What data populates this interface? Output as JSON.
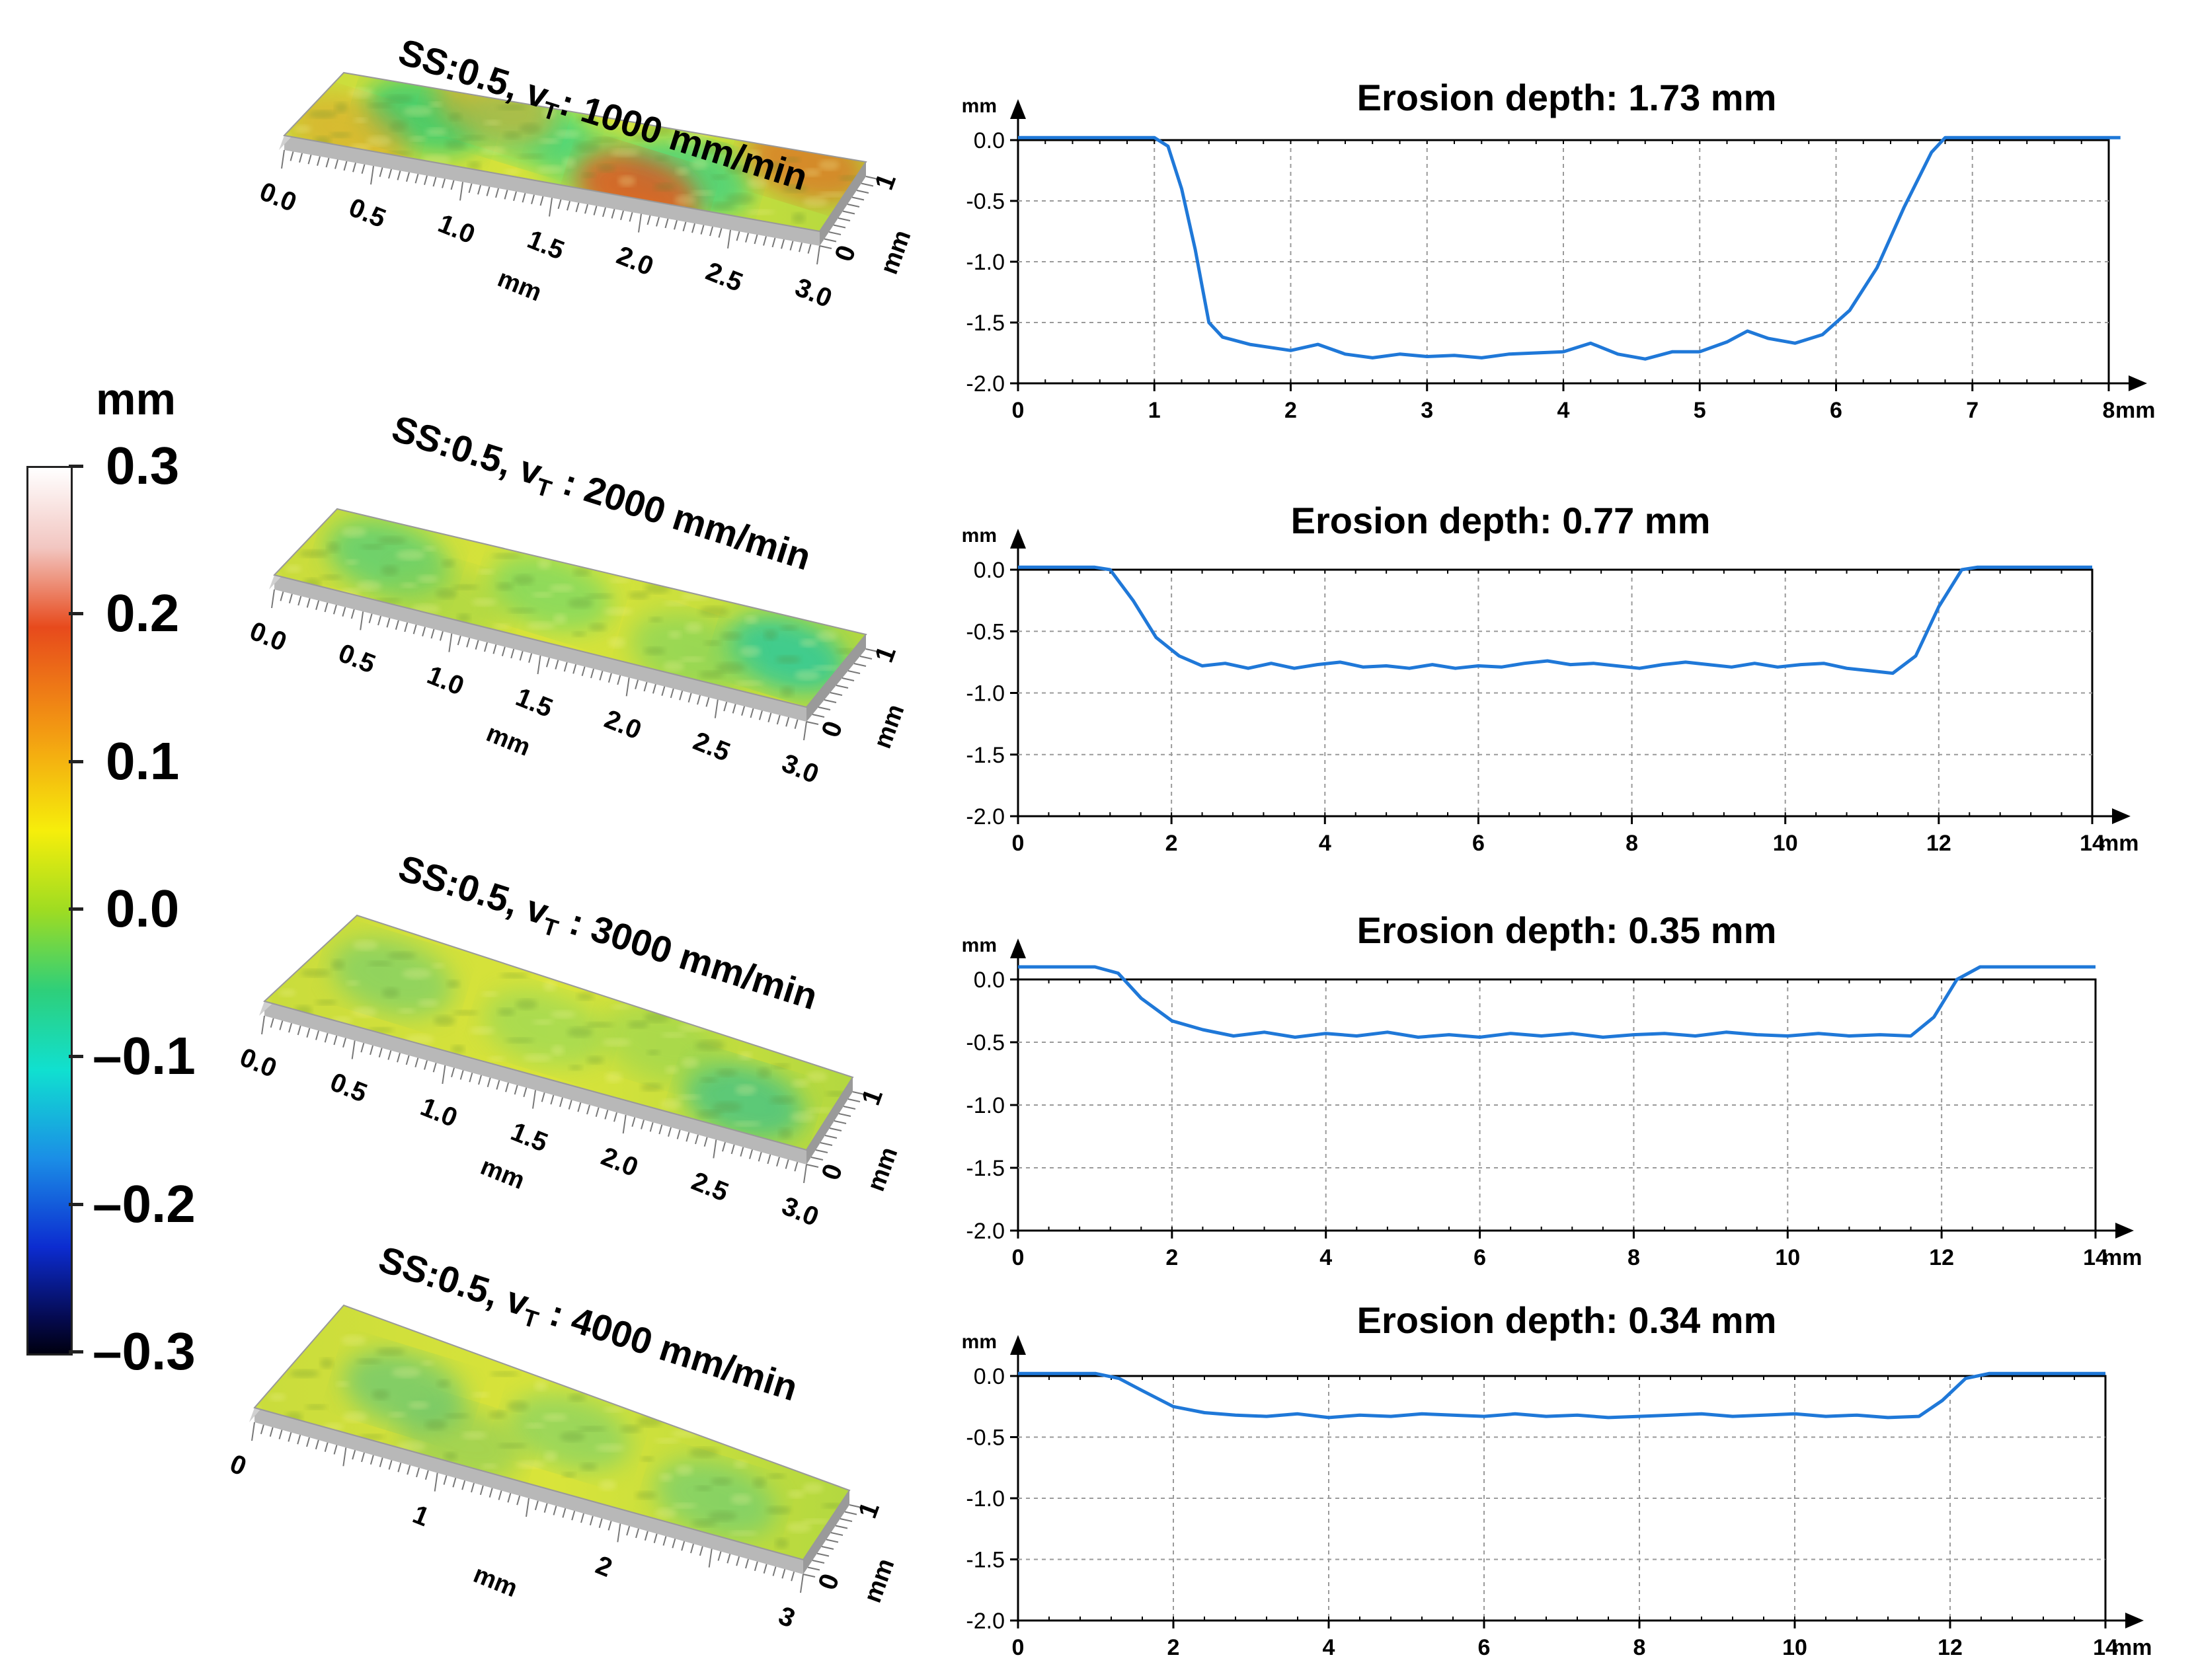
{
  "colorbar": {
    "unit": "mm",
    "labels": [
      "0.3",
      "0.2",
      "0.1",
      "0.0",
      "–0.1",
      "–0.2",
      "–0.3"
    ]
  },
  "surface_panels": [
    {
      "title_prefix": "SS:0.5, v",
      "title_sub": "T",
      "title_suffix": ": 1000 mm/min",
      "x_ticks": [
        "0.0",
        "0.5",
        "1.0",
        "1.5",
        "2.0",
        "2.5",
        "3.0"
      ],
      "x_unit": "mm",
      "y_ticks": [
        "0",
        "1"
      ],
      "y_unit": "mm"
    },
    {
      "title_prefix": "SS:0.5, v",
      "title_sub": "T",
      "title_suffix": " : 2000 mm/min",
      "x_ticks": [
        "0.0",
        "0.5",
        "1.0",
        "1.5",
        "2.0",
        "2.5",
        "3.0"
      ],
      "x_unit": "mm",
      "y_ticks": [
        "0",
        "1"
      ],
      "y_unit": "mm"
    },
    {
      "title_prefix": "SS:0.5, v",
      "title_sub": "T",
      "title_suffix": " : 3000 mm/min",
      "x_ticks": [
        "0.0",
        "0.5",
        "1.0",
        "1.5",
        "2.0",
        "2.5",
        "3.0"
      ],
      "x_unit": "mm",
      "y_ticks": [
        "0",
        "1"
      ],
      "y_unit": "mm"
    },
    {
      "title_prefix": "SS:0.5, v",
      "title_sub": "T",
      "title_suffix": " : 4000 mm/min",
      "x_ticks": [
        "0",
        "1",
        "2",
        "3"
      ],
      "x_unit": "mm",
      "y_ticks": [
        "0",
        "1"
      ],
      "y_unit": "mm"
    }
  ],
  "chart_data": [
    {
      "type": "line",
      "title": "Erosion depth: 1.73 mm",
      "xlabel": "mm",
      "ylabel": "mm",
      "xlim": [
        0,
        8
      ],
      "ylim": [
        -2.0,
        0.0
      ],
      "x_ticks": [
        "0",
        "1",
        "2",
        "3",
        "4",
        "5",
        "6",
        "7",
        "8"
      ],
      "y_ticks": [
        "0.0",
        "-0.5",
        "-1.0",
        "-1.5",
        "-2.0"
      ],
      "grid": true,
      "series": [
        {
          "name": "profile",
          "color": "#1f78d8",
          "x": [
            0.0,
            0.5,
            1.0,
            1.1,
            1.2,
            1.3,
            1.35,
            1.4,
            1.5,
            1.7,
            2.0,
            2.2,
            2.4,
            2.6,
            2.8,
            3.0,
            3.2,
            3.4,
            3.6,
            3.8,
            4.0,
            4.2,
            4.4,
            4.6,
            4.8,
            5.0,
            5.2,
            5.35,
            5.5,
            5.7,
            5.9,
            6.1,
            6.3,
            6.5,
            6.7,
            6.8,
            7.0,
            7.5,
            8.1
          ],
          "y": [
            0.02,
            0.02,
            0.02,
            -0.05,
            -0.4,
            -0.9,
            -1.2,
            -1.5,
            -1.62,
            -1.68,
            -1.73,
            -1.68,
            -1.76,
            -1.79,
            -1.76,
            -1.78,
            -1.77,
            -1.79,
            -1.76,
            -1.75,
            -1.74,
            -1.67,
            -1.76,
            -1.8,
            -1.74,
            -1.74,
            -1.66,
            -1.57,
            -1.63,
            -1.67,
            -1.6,
            -1.4,
            -1.05,
            -0.55,
            -0.1,
            0.02,
            0.02,
            0.02,
            0.02
          ]
        }
      ]
    },
    {
      "type": "line",
      "title": "Erosion depth: 0.77 mm",
      "xlabel": "mm",
      "ylabel": "mm",
      "xlim": [
        0,
        14
      ],
      "ylim": [
        -2.0,
        0.0
      ],
      "x_ticks": [
        "0",
        "2",
        "4",
        "6",
        "8",
        "10",
        "12",
        "14"
      ],
      "y_ticks": [
        "0.0",
        "-0.5",
        "-1.0",
        "-1.5",
        "-2.0"
      ],
      "grid": true,
      "series": [
        {
          "name": "profile",
          "color": "#1f78d8",
          "x": [
            0.0,
            0.5,
            1.0,
            1.2,
            1.5,
            1.8,
            2.1,
            2.4,
            2.7,
            3.0,
            3.3,
            3.6,
            3.9,
            4.2,
            4.5,
            4.8,
            5.1,
            5.4,
            5.7,
            6.0,
            6.3,
            6.6,
            6.9,
            7.2,
            7.5,
            7.8,
            8.1,
            8.4,
            8.7,
            9.0,
            9.3,
            9.6,
            9.9,
            10.2,
            10.5,
            10.8,
            11.1,
            11.4,
            11.7,
            12.0,
            12.3,
            12.5,
            13.0,
            14.0
          ],
          "y": [
            0.02,
            0.02,
            0.02,
            0.0,
            -0.25,
            -0.55,
            -0.7,
            -0.78,
            -0.76,
            -0.8,
            -0.76,
            -0.8,
            -0.77,
            -0.75,
            -0.79,
            -0.78,
            -0.8,
            -0.77,
            -0.8,
            -0.78,
            -0.79,
            -0.76,
            -0.74,
            -0.77,
            -0.76,
            -0.78,
            -0.8,
            -0.77,
            -0.75,
            -0.77,
            -0.79,
            -0.76,
            -0.79,
            -0.77,
            -0.76,
            -0.8,
            -0.82,
            -0.84,
            -0.7,
            -0.3,
            0.0,
            0.02,
            0.02,
            0.02
          ]
        }
      ]
    },
    {
      "type": "line",
      "title": "Erosion depth: 0.35 mm",
      "xlabel": "mm",
      "ylabel": "mm",
      "xlim": [
        0,
        14
      ],
      "ylim": [
        -2.0,
        0.0
      ],
      "x_ticks": [
        "0",
        "2",
        "4",
        "6",
        "8",
        "10",
        "12",
        "14"
      ],
      "y_ticks": [
        "0.0",
        "-0.5",
        "-1.0",
        "-1.5",
        "-2.0"
      ],
      "grid": true,
      "series": [
        {
          "name": "profile",
          "color": "#1f78d8",
          "x": [
            0.0,
            0.5,
            1.0,
            1.3,
            1.6,
            2.0,
            2.4,
            2.8,
            3.2,
            3.6,
            4.0,
            4.4,
            4.8,
            5.2,
            5.6,
            6.0,
            6.4,
            6.8,
            7.2,
            7.6,
            8.0,
            8.4,
            8.8,
            9.2,
            9.6,
            10.0,
            10.4,
            10.8,
            11.2,
            11.6,
            11.9,
            12.2,
            12.5,
            13.0,
            14.0
          ],
          "y": [
            0.1,
            0.1,
            0.1,
            0.05,
            -0.15,
            -0.33,
            -0.4,
            -0.45,
            -0.42,
            -0.46,
            -0.43,
            -0.45,
            -0.42,
            -0.46,
            -0.44,
            -0.46,
            -0.43,
            -0.45,
            -0.43,
            -0.46,
            -0.44,
            -0.43,
            -0.45,
            -0.42,
            -0.44,
            -0.45,
            -0.43,
            -0.45,
            -0.44,
            -0.45,
            -0.3,
            0.0,
            0.1,
            0.1,
            0.1
          ]
        }
      ]
    },
    {
      "type": "line",
      "title": "Erosion depth: 0.34 mm",
      "xlabel": "mm",
      "ylabel": "mm",
      "xlim": [
        0,
        14
      ],
      "ylim": [
        -2.0,
        0.0
      ],
      "x_ticks": [
        "0",
        "2",
        "4",
        "6",
        "8",
        "10",
        "12",
        "14"
      ],
      "y_ticks": [
        "0.0",
        "-0.5",
        "-1.0",
        "-1.5",
        "-2.0"
      ],
      "grid": true,
      "series": [
        {
          "name": "profile",
          "color": "#1f78d8",
          "x": [
            0.0,
            0.5,
            1.0,
            1.3,
            1.6,
            2.0,
            2.4,
            2.8,
            3.2,
            3.6,
            4.0,
            4.4,
            4.8,
            5.2,
            5.6,
            6.0,
            6.4,
            6.8,
            7.2,
            7.6,
            8.0,
            8.4,
            8.8,
            9.2,
            9.6,
            10.0,
            10.4,
            10.8,
            11.2,
            11.6,
            11.9,
            12.2,
            12.5,
            13.0,
            14.0
          ],
          "y": [
            0.02,
            0.02,
            0.02,
            -0.02,
            -0.12,
            -0.25,
            -0.3,
            -0.32,
            -0.33,
            -0.31,
            -0.34,
            -0.32,
            -0.33,
            -0.31,
            -0.32,
            -0.33,
            -0.31,
            -0.33,
            -0.32,
            -0.34,
            -0.33,
            -0.32,
            -0.31,
            -0.33,
            -0.32,
            -0.31,
            -0.33,
            -0.32,
            -0.34,
            -0.33,
            -0.2,
            -0.02,
            0.02,
            0.02,
            0.02
          ]
        }
      ]
    }
  ]
}
